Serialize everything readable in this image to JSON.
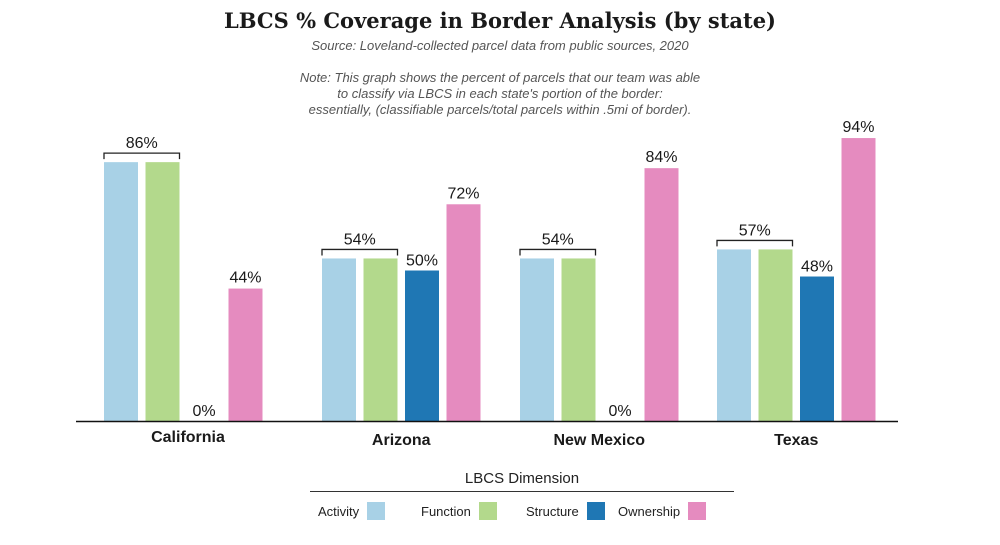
{
  "title": "LBCS % Coverage in Border Analysis (by state)",
  "subtitle": "Source: Loveland-collected parcel data from public sources, 2020",
  "note": [
    "Note: This graph shows the percent of parcels that our team was able",
    "to classify via LBCS in each state's portion of the border:",
    "essentially, (classifiable parcels/total parcels within .5mi of border)."
  ],
  "colors": {
    "Activity": "#a8d1e6",
    "Function": "#b3d98c",
    "Structure": "#1f77b4",
    "Ownership": "#e58bbf"
  },
  "legend": {
    "title": "LBCS Dimension",
    "items": [
      "Activity",
      "Function",
      "Structure",
      "Ownership"
    ]
  },
  "chart_data": {
    "type": "bar",
    "title": "LBCS % Coverage in Border Analysis (by state)",
    "subtitle": "Source: Loveland-collected parcel data from public sources, 2020",
    "categories": [
      "California",
      "Arizona",
      "New Mexico",
      "Texas"
    ],
    "series": [
      {
        "name": "Activity",
        "values": [
          86,
          54,
          54,
          57
        ]
      },
      {
        "name": "Function",
        "values": [
          86,
          54,
          54,
          57
        ]
      },
      {
        "name": "Structure",
        "values": [
          0,
          50,
          0,
          48
        ]
      },
      {
        "name": "Ownership",
        "values": [
          44,
          72,
          84,
          94
        ]
      }
    ],
    "group_labels": [
      "86%",
      "54%",
      "54%",
      "57%"
    ],
    "structure_labels": [
      "0%",
      "50%",
      "0%",
      "48%"
    ],
    "ownership_labels": [
      "44%",
      "72%",
      "84%",
      "94%"
    ],
    "ylim": [
      0,
      100
    ],
    "grid": false,
    "legend_position": "bottom"
  }
}
